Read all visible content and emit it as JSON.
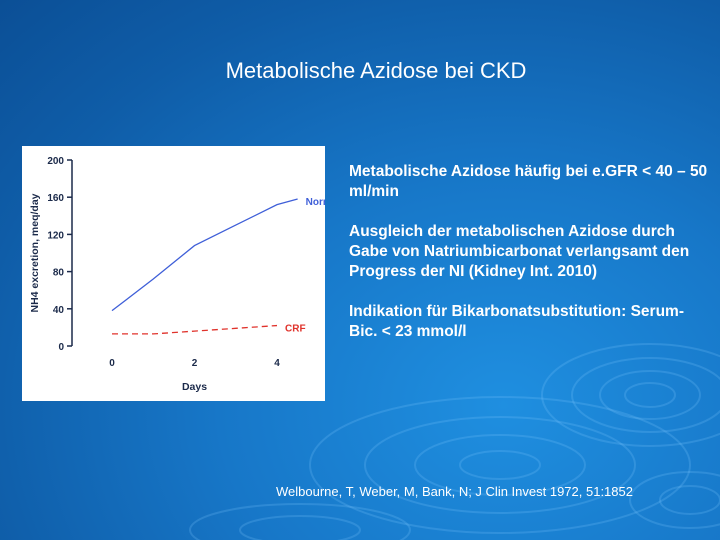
{
  "slide": {
    "title": "Metabolische Azidose bei CKD",
    "bullets": [
      "Metabolische Azidose häufig bei e.GFR < 40 – 50 ml/min",
      "Ausgleich der metabolischen Azidose durch Gabe von Natriumbicarbonat verlangsamt den Progress der NI (Kidney Int. 2010)",
      "Indikation für Bikarbonatsubstitution: Serum-Bic. < 23 mmol/l"
    ],
    "reference": "Welbourne, T, Weber, M, Bank, N; J Clin Invest 1972, 51:1852"
  },
  "chart_data": {
    "type": "line",
    "title": "",
    "xlabel": "Days",
    "ylabel": "NH4 excretion, meq/day",
    "xlim": [
      0,
      4
    ],
    "ylim": [
      0,
      200
    ],
    "xticks": [
      0,
      2,
      4
    ],
    "yticks": [
      0,
      40,
      80,
      120,
      160,
      200
    ],
    "grid": false,
    "series": [
      {
        "name": "Normals",
        "color": "#3f5fd8",
        "dash": "solid",
        "x": [
          0,
          1,
          2,
          3,
          4,
          4.5
        ],
        "y": [
          38,
          72,
          108,
          130,
          152,
          158
        ]
      },
      {
        "name": "CRF",
        "color": "#e0322b",
        "dash": "dashed",
        "x": [
          0,
          1,
          2,
          3,
          4
        ],
        "y": [
          13,
          13,
          16,
          19,
          22
        ]
      }
    ]
  },
  "colors": {
    "background": "#1777c8",
    "text": "#ffffff",
    "chart_axis": "#1b2a4a"
  }
}
